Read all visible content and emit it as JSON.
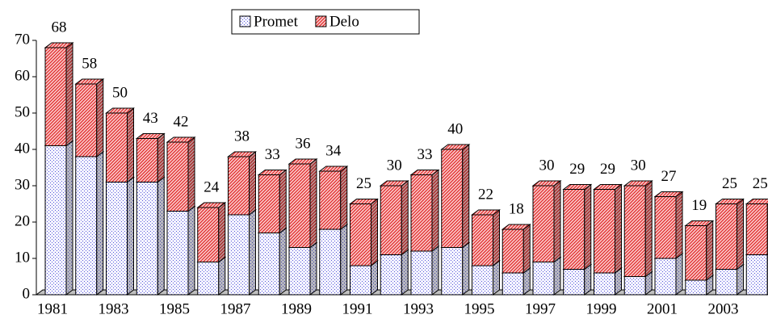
{
  "chart_data": {
    "type": "bar",
    "stacked": true,
    "legend": "top",
    "categories": [
      "1981",
      null,
      "1983",
      null,
      "1985",
      null,
      "1987",
      null,
      "1989",
      null,
      "1991",
      null,
      "1993",
      null,
      "1995",
      null,
      "1997",
      null,
      "1999",
      null,
      "2001",
      null,
      "2003",
      null
    ],
    "series": [
      {
        "name": "Promet",
        "color": "#5a5ad8",
        "values": [
          41,
          38,
          31,
          31,
          23,
          9,
          22,
          17,
          13,
          18,
          8,
          11,
          12,
          13,
          8,
          6,
          9,
          7,
          6,
          5,
          10,
          4,
          7,
          11
        ]
      },
      {
        "name": "Delo",
        "color": "#e02828",
        "values": [
          27,
          20,
          19,
          12,
          19,
          15,
          16,
          16,
          23,
          16,
          17,
          19,
          21,
          27,
          14,
          12,
          21,
          22,
          23,
          25,
          17,
          15,
          18,
          14
        ]
      }
    ],
    "totals": [
      68,
      58,
      50,
      43,
      42,
      24,
      38,
      33,
      36,
      34,
      25,
      30,
      33,
      40,
      22,
      18,
      30,
      29,
      29,
      30,
      27,
      19,
      25,
      25
    ],
    "ylim": [
      0,
      70
    ],
    "yticks": [
      0,
      10,
      20,
      30,
      40,
      50,
      60,
      70
    ]
  }
}
